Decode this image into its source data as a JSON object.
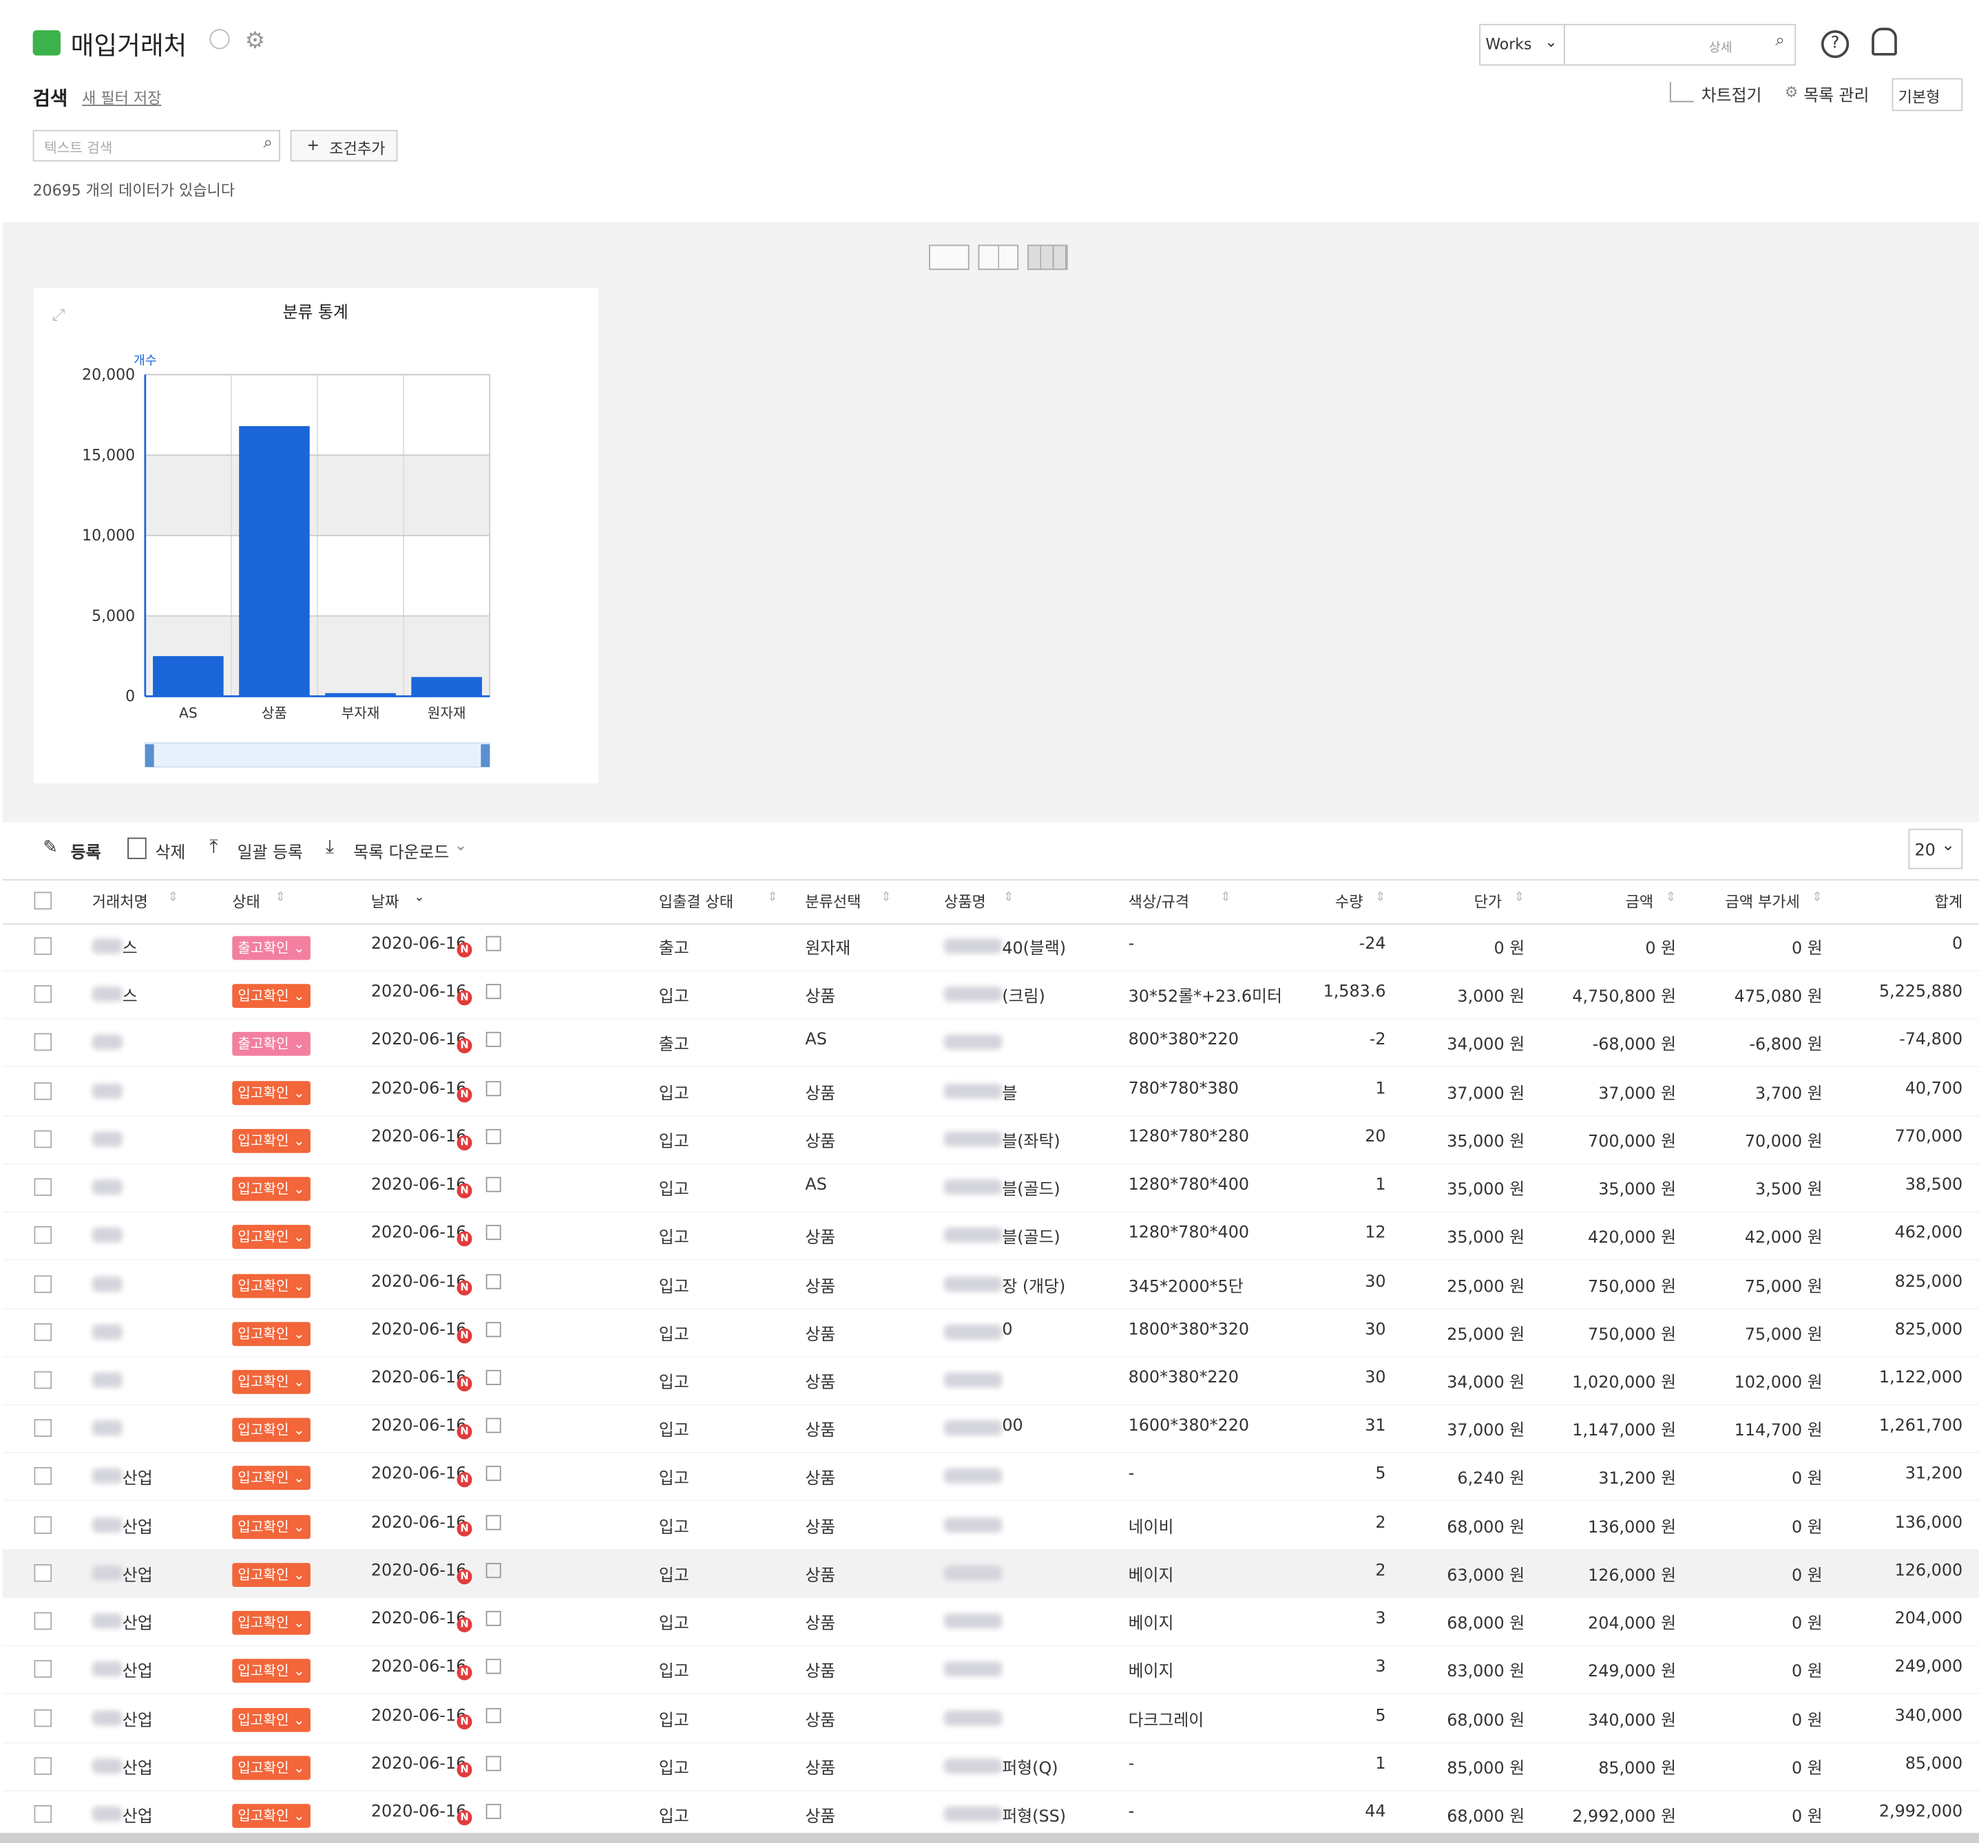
{
  "header": {
    "title": "매입거래처",
    "search_label": "검색",
    "save_filter": "새 필터 저장",
    "text_search": "텍스트 검색",
    "add_condition": "조건추가",
    "count_text": "20695 개의 데이터가 있습니다",
    "works": "Works",
    "detail": "상세",
    "chart_fold": "차트접기",
    "list_manage": "목록 관리",
    "view_type": "기본형"
  },
  "chart_data": {
    "type": "bar",
    "title": "분류 통계",
    "y_label": "개수",
    "categories": [
      "AS",
      "상품",
      "부자재",
      "원자재"
    ],
    "values": [
      2500,
      16800,
      200,
      1200
    ],
    "color": "#1a66d9",
    "ylim": [
      0,
      20000
    ],
    "yticks": [
      0,
      {
        "value": 5000,
        "label": "5,000"
      },
      {
        "value": 10000,
        "label": "10,000"
      },
      {
        "value": 15000,
        "label": "15,000"
      },
      {
        "value": 20000,
        "label": "20,000"
      }
    ],
    "grid": true
  },
  "toolbar": {
    "register": "등록",
    "delete": "삭제",
    "bulk_register": "일괄 등록",
    "download": "목록 다운로드",
    "page_size": "20"
  },
  "table": {
    "badge": "N",
    "columns": [
      "거래처명",
      "상태",
      "날짜",
      "입출결 상태",
      "분류선택",
      "상품명",
      "색상/규격",
      "수량",
      "단가",
      "금액",
      "금액 부가세",
      "합계"
    ],
    "rows": [
      [
        "스",
        "출고확인",
        "2020-06-16",
        "출고",
        "원자재",
        "40(블랙)",
        "-",
        "-24",
        "0 원",
        "0 원",
        "0 원",
        "0"
      ],
      [
        "스",
        "입고확인",
        "2020-06-16",
        "입고",
        "상품",
        "(크림)",
        "30*52롤*+23.6미터",
        "1,583.6",
        "3,000 원",
        "4,750,800 원",
        "475,080 원",
        "5,225,880"
      ],
      [
        null,
        "출고확인",
        "2020-06-16",
        "출고",
        "AS",
        null,
        "800*380*220",
        "-2",
        "34,000 원",
        "-68,000 원",
        "-6,800 원",
        "-74,800"
      ],
      [
        null,
        "입고확인",
        "2020-06-16",
        "입고",
        "상품",
        "블",
        "780*780*380",
        "1",
        "37,000 원",
        "37,000 원",
        "3,700 원",
        "40,700"
      ],
      [
        null,
        "입고확인",
        "2020-06-16",
        "입고",
        "상품",
        "블(좌탁)",
        "1280*780*280",
        "20",
        "35,000 원",
        "700,000 원",
        "70,000 원",
        "770,000"
      ],
      [
        null,
        "입고확인",
        "2020-06-16",
        "입고",
        "AS",
        "블(골드)",
        "1280*780*400",
        "1",
        "35,000 원",
        "35,000 원",
        "3,500 원",
        "38,500"
      ],
      [
        null,
        "입고확인",
        "2020-06-16",
        "입고",
        "상품",
        "블(골드)",
        "1280*780*400",
        "12",
        "35,000 원",
        "420,000 원",
        "42,000 원",
        "462,000"
      ],
      [
        null,
        "입고확인",
        "2020-06-16",
        "입고",
        "상품",
        "장 (개당)",
        "345*2000*5단",
        "30",
        "25,000 원",
        "750,000 원",
        "75,000 원",
        "825,000"
      ],
      [
        null,
        "입고확인",
        "2020-06-16",
        "입고",
        "상품",
        "0",
        "1800*380*320",
        "30",
        "25,000 원",
        "750,000 원",
        "75,000 원",
        "825,000"
      ],
      [
        null,
        "입고확인",
        "2020-06-16",
        "입고",
        "상품",
        null,
        "800*380*220",
        "30",
        "34,000 원",
        "1,020,000 원",
        "102,000 원",
        "1,122,000"
      ],
      [
        null,
        "입고확인",
        "2020-06-16",
        "입고",
        "상품",
        "00",
        "1600*380*220",
        "31",
        "37,000 원",
        "1,147,000 원",
        "114,700 원",
        "1,261,700"
      ],
      [
        "산업",
        "입고확인",
        "2020-06-16",
        "입고",
        "상품",
        null,
        "-",
        "5",
        "6,240 원",
        "31,200 원",
        "0 원",
        "31,200"
      ],
      [
        "산업",
        "입고확인",
        "2020-06-16",
        "입고",
        "상품",
        null,
        "네이비",
        "2",
        "68,000 원",
        "136,000 원",
        "0 원",
        "136,000"
      ],
      [
        "산업",
        "입고확인",
        "2020-06-16",
        "입고",
        "상품",
        null,
        "베이지",
        "2",
        "63,000 원",
        "126,000 원",
        "0 원",
        "126,000"
      ],
      [
        "산업",
        "입고확인",
        "2020-06-16",
        "입고",
        "상품",
        null,
        "베이지",
        "3",
        "68,000 원",
        "204,000 원",
        "0 원",
        "204,000"
      ],
      [
        "산업",
        "입고확인",
        "2020-06-16",
        "입고",
        "상품",
        null,
        "베이지",
        "3",
        "83,000 원",
        "249,000 원",
        "0 원",
        "249,000"
      ],
      [
        "산업",
        "입고확인",
        "2020-06-16",
        "입고",
        "상품",
        null,
        "다크그레이",
        "5",
        "68,000 원",
        "340,000 원",
        "0 원",
        "340,000"
      ],
      [
        "산업",
        "입고확인",
        "2020-06-16",
        "입고",
        "상품",
        "퍼형(Q)",
        "-",
        "1",
        "85,000 원",
        "85,000 원",
        "0 원",
        "85,000"
      ],
      [
        "산업",
        "입고확인",
        "2020-06-16",
        "입고",
        "상품",
        "퍼형(SS)",
        "-",
        "44",
        "68,000 원",
        "2,992,000 원",
        "0 원",
        "2,992,000"
      ]
    ]
  }
}
